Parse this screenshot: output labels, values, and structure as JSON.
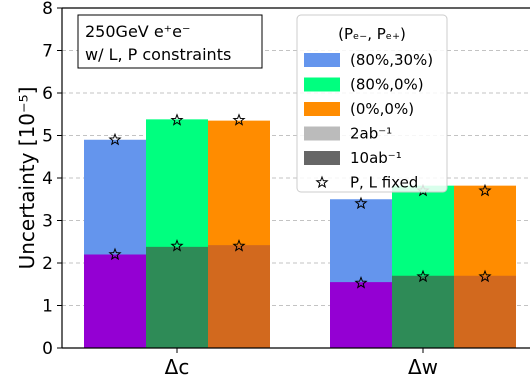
{
  "chart_data": {
    "type": "bar",
    "ylabel": "Uncertainty [10⁻⁵]",
    "ylim": [
      0,
      8
    ],
    "yticks": [
      "0",
      "1",
      "2",
      "3",
      "4",
      "5",
      "6",
      "7",
      "8"
    ],
    "grid": "horizontal dashed",
    "categories": [
      "Δc",
      "Δw"
    ],
    "annotation": {
      "line1": "250GeV e⁺e⁻",
      "line2": "w/ L, P constraints"
    },
    "legend": {
      "placement": "top-right",
      "title": "(Pₑ₋, Pₑ₊)",
      "entries": [
        {
          "label": "(80%,30%)",
          "color": "#6495ed"
        },
        {
          "label": "(80%,0%)",
          "color": "#00ff7f"
        },
        {
          "label": "(0%,0%)",
          "color": "#ff8c00"
        },
        {
          "label": "2ab⁻¹",
          "color": "#bbbbbb"
        },
        {
          "label": "10ab⁻¹",
          "color": "#666666"
        },
        {
          "label": "P, L fixed",
          "marker": "star"
        }
      ]
    },
    "series": [
      {
        "name": "(80%,30%)",
        "color_2ab": "#6495ed",
        "color_10ab": "#9400d3",
        "values_2ab": [
          4.9,
          3.5
        ],
        "values_10ab": [
          2.2,
          1.55
        ],
        "fixed_2ab": [
          4.9,
          3.4
        ],
        "fixed_10ab": [
          2.2,
          1.53
        ]
      },
      {
        "name": "(80%,0%)",
        "color_2ab": "#00ff7f",
        "color_10ab": "#2e8b57",
        "values_2ab": [
          5.38,
          3.82
        ],
        "values_10ab": [
          2.38,
          1.7
        ],
        "fixed_2ab": [
          5.36,
          3.7
        ],
        "fixed_10ab": [
          2.4,
          1.68
        ]
      },
      {
        "name": "(0%,0%)",
        "color_2ab": "#ff8c00",
        "color_10ab": "#d2691e",
        "values_2ab": [
          5.35,
          3.82
        ],
        "values_10ab": [
          2.42,
          1.7
        ],
        "fixed_2ab": [
          5.36,
          3.7
        ],
        "fixed_10ab": [
          2.4,
          1.68
        ]
      }
    ]
  }
}
